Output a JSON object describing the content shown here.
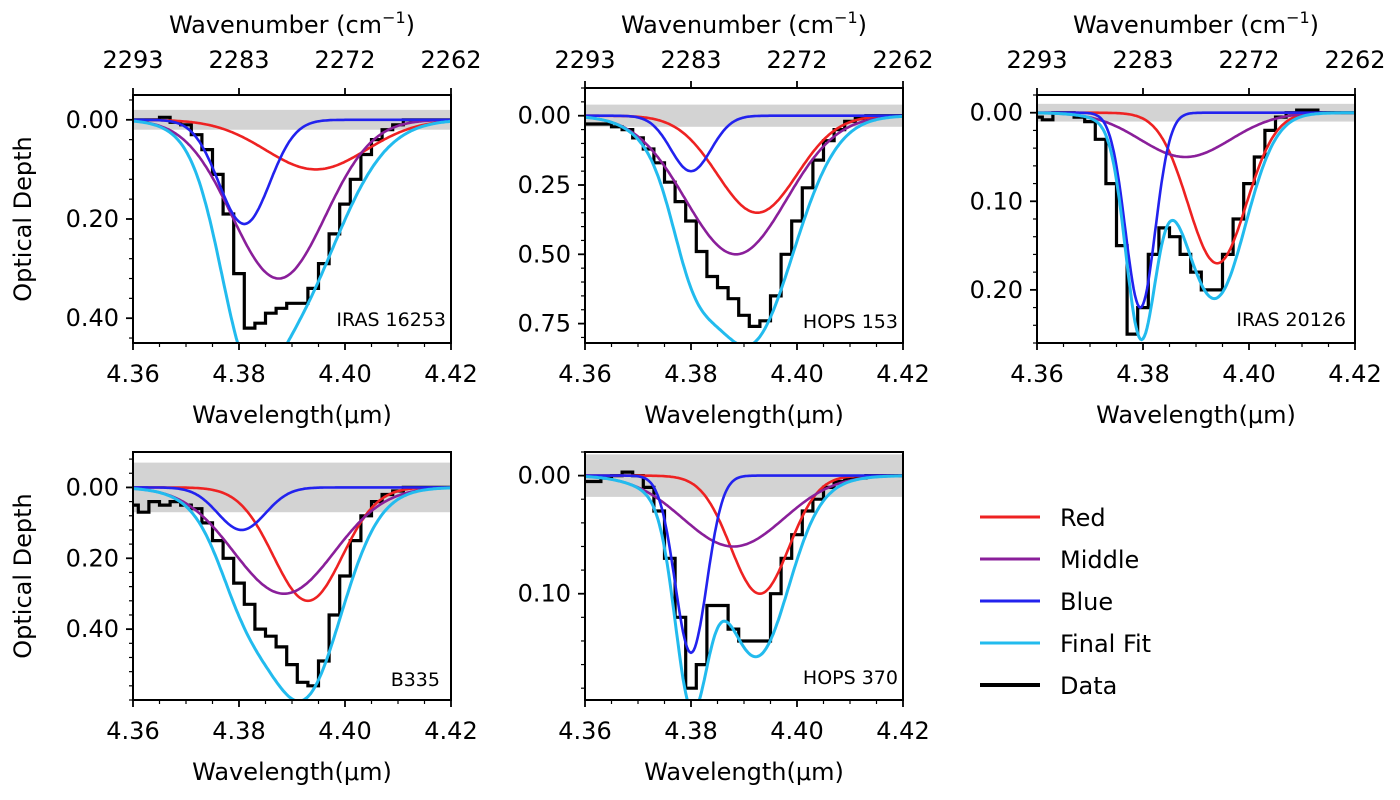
{
  "figure": {
    "shared_ylabel": "Optical Depth",
    "shared_xlabel": "Wavelength(μm)",
    "top_axis_label": "Wavenumber (cm",
    "top_axis_label_sup": "−1",
    "top_axis_label_close": ")",
    "top_axis_ticks": [
      "2293",
      "2283",
      "2272",
      "2262"
    ],
    "x_ticks": [
      "4.36",
      "4.38",
      "4.40",
      "4.42"
    ]
  },
  "legend": {
    "items": [
      {
        "label": "Red",
        "color": "#ee2222"
      },
      {
        "label": "Middle",
        "color": "#8a1f9a"
      },
      {
        "label": "Blue",
        "color": "#2222ee"
      },
      {
        "label": "Final Fit",
        "color": "#22bbee"
      },
      {
        "label": "Data",
        "color": "#000000"
      }
    ]
  },
  "chart_data": [
    {
      "type": "line",
      "label": "IRAS 16253",
      "xlim": [
        4.36,
        4.42
      ],
      "ylim": [
        0.45,
        -0.05
      ],
      "yticks": [
        0.0,
        0.2,
        0.4
      ],
      "ytick_labels": [
        "0.00",
        "0.20",
        "0.40"
      ],
      "noise_band": [
        -0.02,
        0.02
      ],
      "xlabel": "Wavelength(μm)",
      "ylabel": "Optical Depth",
      "components": {
        "red": [
          4.3945,
          0.0095,
          0.1
        ],
        "middle": [
          4.3875,
          0.0088,
          0.32
        ],
        "blue": [
          4.381,
          0.0048,
          0.21
        ]
      },
      "data_step": [
        [
          4.36,
          0.0
        ],
        [
          4.362,
          0.0
        ],
        [
          4.364,
          0.0
        ],
        [
          4.366,
          -0.005
        ],
        [
          4.368,
          0.005
        ],
        [
          4.37,
          0.01
        ],
        [
          4.372,
          0.03
        ],
        [
          4.374,
          0.06
        ],
        [
          4.376,
          0.11
        ],
        [
          4.378,
          0.19
        ],
        [
          4.38,
          0.31
        ],
        [
          4.382,
          0.42
        ],
        [
          4.384,
          0.41
        ],
        [
          4.386,
          0.39
        ],
        [
          4.388,
          0.38
        ],
        [
          4.39,
          0.37
        ],
        [
          4.392,
          0.37
        ],
        [
          4.394,
          0.34
        ],
        [
          4.396,
          0.29
        ],
        [
          4.398,
          0.23
        ],
        [
          4.4,
          0.17
        ],
        [
          4.402,
          0.12
        ],
        [
          4.404,
          0.07
        ],
        [
          4.406,
          0.04
        ],
        [
          4.408,
          0.02
        ],
        [
          4.41,
          0.01
        ],
        [
          4.412,
          0.0
        ],
        [
          4.414,
          0.0
        ],
        [
          4.416,
          0.0
        ],
        [
          4.418,
          0.0
        ],
        [
          4.42,
          0.0
        ]
      ]
    },
    {
      "type": "line",
      "label": "HOPS 153",
      "xlim": [
        4.36,
        4.42
      ],
      "ylim": [
        0.82,
        -0.1
      ],
      "yticks": [
        0.0,
        0.25,
        0.5,
        0.75
      ],
      "ytick_labels": [
        "0.00",
        "0.25",
        "0.50",
        "0.75"
      ],
      "noise_band": [
        -0.04,
        0.04
      ],
      "xlabel": "Wavelength(μm)",
      "ylabel": "",
      "components": {
        "red": [
          4.3925,
          0.0075,
          0.35
        ],
        "middle": [
          4.3885,
          0.0095,
          0.5
        ],
        "blue": [
          4.38,
          0.0038,
          0.2
        ]
      },
      "data_step": [
        [
          4.36,
          0.03
        ],
        [
          4.362,
          0.03
        ],
        [
          4.364,
          0.03
        ],
        [
          4.366,
          0.04
        ],
        [
          4.368,
          0.05
        ],
        [
          4.37,
          0.08
        ],
        [
          4.372,
          0.12
        ],
        [
          4.374,
          0.17
        ],
        [
          4.376,
          0.24
        ],
        [
          4.378,
          0.31
        ],
        [
          4.38,
          0.38
        ],
        [
          4.382,
          0.49
        ],
        [
          4.384,
          0.58
        ],
        [
          4.386,
          0.62
        ],
        [
          4.388,
          0.66
        ],
        [
          4.39,
          0.72
        ],
        [
          4.392,
          0.76
        ],
        [
          4.394,
          0.74
        ],
        [
          4.396,
          0.65
        ],
        [
          4.398,
          0.5
        ],
        [
          4.4,
          0.38
        ],
        [
          4.402,
          0.26
        ],
        [
          4.404,
          0.16
        ],
        [
          4.406,
          0.09
        ],
        [
          4.408,
          0.05
        ],
        [
          4.41,
          0.02
        ],
        [
          4.412,
          0.01
        ],
        [
          4.414,
          0.0
        ],
        [
          4.416,
          0.0
        ],
        [
          4.418,
          0.0
        ],
        [
          4.42,
          0.0
        ]
      ]
    },
    {
      "type": "line",
      "label": "IRAS 20126",
      "xlim": [
        4.36,
        4.42
      ],
      "ylim": [
        0.26,
        -0.02
      ],
      "yticks": [
        0.0,
        0.1,
        0.2
      ],
      "ytick_labels": [
        "0.00",
        "0.10",
        "0.20"
      ],
      "noise_band": [
        -0.01,
        0.01
      ],
      "xlabel": "Wavelength(μm)",
      "ylabel": "",
      "components": {
        "red": [
          4.394,
          0.0055,
          0.17
        ],
        "middle": [
          4.388,
          0.0085,
          0.05
        ],
        "blue": [
          4.3795,
          0.0028,
          0.22
        ]
      },
      "data_step": [
        [
          4.36,
          0.005
        ],
        [
          4.362,
          0.008
        ],
        [
          4.364,
          0.0
        ],
        [
          4.366,
          0.0
        ],
        [
          4.368,
          0.005
        ],
        [
          4.37,
          0.01
        ],
        [
          4.372,
          0.03
        ],
        [
          4.374,
          0.08
        ],
        [
          4.376,
          0.15
        ],
        [
          4.378,
          0.25
        ],
        [
          4.38,
          0.22
        ],
        [
          4.382,
          0.16
        ],
        [
          4.384,
          0.13
        ],
        [
          4.386,
          0.14
        ],
        [
          4.388,
          0.16
        ],
        [
          4.39,
          0.18
        ],
        [
          4.392,
          0.2
        ],
        [
          4.394,
          0.2
        ],
        [
          4.396,
          0.16
        ],
        [
          4.398,
          0.12
        ],
        [
          4.4,
          0.08
        ],
        [
          4.402,
          0.05
        ],
        [
          4.404,
          0.02
        ],
        [
          4.406,
          0.005
        ],
        [
          4.408,
          0.0
        ],
        [
          4.41,
          -0.003
        ],
        [
          4.412,
          -0.003
        ],
        [
          4.414,
          0.0
        ],
        [
          4.416,
          0.0
        ],
        [
          4.418,
          0.0
        ],
        [
          4.42,
          0.0
        ]
      ]
    },
    {
      "type": "line",
      "label": "B335",
      "xlim": [
        4.36,
        4.42
      ],
      "ylim": [
        0.6,
        -0.1
      ],
      "yticks": [
        0.0,
        0.2,
        0.4
      ],
      "ytick_labels": [
        "0.00",
        "0.20",
        "0.40"
      ],
      "noise_band": [
        -0.07,
        0.07
      ],
      "xlabel": "Wavelength(μm)",
      "ylabel": "Optical Depth",
      "components": {
        "red": [
          4.393,
          0.0065,
          0.32
        ],
        "middle": [
          4.3885,
          0.0095,
          0.3
        ],
        "blue": [
          4.3805,
          0.0045,
          0.12
        ]
      },
      "data_step": [
        [
          4.36,
          0.05
        ],
        [
          4.362,
          0.07
        ],
        [
          4.364,
          0.04
        ],
        [
          4.366,
          0.05
        ],
        [
          4.368,
          0.04
        ],
        [
          4.37,
          0.05
        ],
        [
          4.372,
          0.06
        ],
        [
          4.374,
          0.1
        ],
        [
          4.376,
          0.15
        ],
        [
          4.378,
          0.2
        ],
        [
          4.38,
          0.27
        ],
        [
          4.382,
          0.33
        ],
        [
          4.384,
          0.4
        ],
        [
          4.386,
          0.42
        ],
        [
          4.388,
          0.45
        ],
        [
          4.39,
          0.5
        ],
        [
          4.392,
          0.55
        ],
        [
          4.394,
          0.56
        ],
        [
          4.396,
          0.49
        ],
        [
          4.398,
          0.36
        ],
        [
          4.4,
          0.25
        ],
        [
          4.402,
          0.15
        ],
        [
          4.404,
          0.08
        ],
        [
          4.406,
          0.04
        ],
        [
          4.408,
          0.02
        ],
        [
          4.41,
          0.01
        ],
        [
          4.412,
          0.0
        ],
        [
          4.414,
          0.0
        ],
        [
          4.416,
          0.0
        ],
        [
          4.418,
          0.0
        ],
        [
          4.42,
          0.0
        ]
      ]
    },
    {
      "type": "line",
      "label": "HOPS 370",
      "xlim": [
        4.36,
        4.42
      ],
      "ylim": [
        0.19,
        -0.02
      ],
      "yticks": [
        0.0,
        0.1
      ],
      "ytick_labels": [
        "0.00",
        "0.10"
      ],
      "noise_band": [
        -0.018,
        0.018
      ],
      "xlabel": "Wavelength(μm)",
      "ylabel": "",
      "components": {
        "red": [
          4.393,
          0.0055,
          0.1
        ],
        "middle": [
          4.388,
          0.0095,
          0.06
        ],
        "blue": [
          4.38,
          0.003,
          0.15
        ]
      },
      "data_step": [
        [
          4.36,
          0.005
        ],
        [
          4.362,
          0.005
        ],
        [
          4.364,
          0.002
        ],
        [
          4.366,
          0.0
        ],
        [
          4.368,
          -0.003
        ],
        [
          4.37,
          0.0
        ],
        [
          4.372,
          0.01
        ],
        [
          4.374,
          0.03
        ],
        [
          4.376,
          0.07
        ],
        [
          4.378,
          0.12
        ],
        [
          4.38,
          0.18
        ],
        [
          4.382,
          0.16
        ],
        [
          4.384,
          0.11
        ],
        [
          4.386,
          0.11
        ],
        [
          4.388,
          0.13
        ],
        [
          4.39,
          0.14
        ],
        [
          4.392,
          0.14
        ],
        [
          4.394,
          0.14
        ],
        [
          4.396,
          0.1
        ],
        [
          4.398,
          0.07
        ],
        [
          4.4,
          0.05
        ],
        [
          4.402,
          0.03
        ],
        [
          4.404,
          0.02
        ],
        [
          4.406,
          0.01
        ],
        [
          4.408,
          0.005
        ],
        [
          4.41,
          0.003
        ],
        [
          4.412,
          0.002
        ],
        [
          4.414,
          0.0
        ],
        [
          4.416,
          0.0
        ],
        [
          4.418,
          0.0
        ],
        [
          4.42,
          0.0
        ]
      ]
    }
  ]
}
